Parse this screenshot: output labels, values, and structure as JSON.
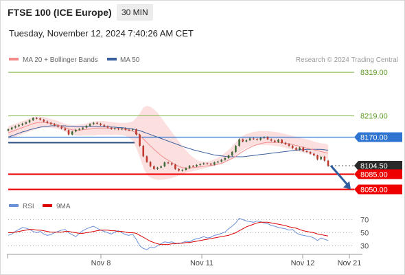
{
  "header": {
    "title": "FTSE 100 (ICE Europe)",
    "interval": "30 MIN",
    "timestamp": "Tuesday, November 12, 2024 7:40:26 AM CET"
  },
  "colors": {
    "ma20": "#f28c8c",
    "ma50": "#3a5f9e",
    "bollinger_fill": "#fbd5d5",
    "candle_up": "#3d6b34",
    "candle_down": "#c0392b",
    "resistance_green": "#7cb342",
    "level_blue": "#2f74d0",
    "support_red": "#ee0000",
    "rsi": "#6a8fd8",
    "rsi_ma": "#dd0000",
    "arrow": "#2e5d9e"
  },
  "chart_data": [
    {
      "type": "line",
      "panel": "price",
      "legend": {
        "ma": "MA 20 + Bollinger Bands",
        "ma50": "MA 50"
      },
      "watermark": "Research © 2024 Trading Central",
      "x_ticks": [
        "Nov 8",
        "Nov 11",
        "Nov 12",
        "Nov 21"
      ],
      "ylim": [
        8035,
        8335
      ],
      "levels": [
        {
          "value": 8319.0,
          "label": "8319.00",
          "style": "resistance"
        },
        {
          "value": 8219.0,
          "label": "8219.00",
          "style": "resistance"
        },
        {
          "value": 8170.0,
          "label": "8170.00",
          "style": "pivot"
        },
        {
          "value": 8104.5,
          "label": "8104.50",
          "style": "last"
        },
        {
          "value": 8085.0,
          "label": "8085.00",
          "style": "support"
        },
        {
          "value": 8050.0,
          "label": "8050.00",
          "style": "support"
        }
      ],
      "candles_close": [
        8188,
        8192,
        8195,
        8198,
        8201,
        8204,
        8209,
        8214,
        8213,
        8210,
        8206,
        8203,
        8200,
        8197,
        8194,
        8190,
        8186,
        8176,
        8183,
        8187,
        8189,
        8192,
        8196,
        8200,
        8203,
        8201,
        8198,
        8195,
        8192,
        8189,
        8190,
        8188,
        8190,
        8187,
        8186,
        8188,
        8176,
        8150,
        8126,
        8113,
        8103,
        8097,
        8100,
        8103,
        8112,
        8110,
        8107,
        8097,
        8093,
        8095,
        8099,
        8104,
        8103,
        8106,
        8108,
        8110,
        8109,
        8107,
        8112,
        8114,
        8118,
        8122,
        8128,
        8136,
        8150,
        8165,
        8160,
        8163,
        8167,
        8166,
        8164,
        8168,
        8170,
        8165,
        8162,
        8159,
        8164,
        8157,
        8154,
        8150,
        8145,
        8141,
        8146,
        8138,
        8136,
        8132,
        8128,
        8119,
        8125,
        8116,
        8104
      ],
      "ma20": [
        8180,
        8183,
        8186,
        8189,
        8192,
        8195,
        8198,
        8201,
        8203,
        8204,
        8204,
        8203,
        8202,
        8200,
        8198,
        8195,
        8192,
        8189,
        8187,
        8186,
        8186,
        8187,
        8188,
        8189,
        8190,
        8191,
        8191,
        8191,
        8191,
        8190,
        8190,
        8189,
        8189,
        8188,
        8186,
        8184,
        8180,
        8174,
        8166,
        8158,
        8150,
        8142,
        8135,
        8128,
        8122,
        8117,
        8112,
        8107,
        8103,
        8100,
        8099,
        8099,
        8100,
        8101,
        8102,
        8103,
        8104,
        8105,
        8106,
        8108,
        8110,
        8113,
        8117,
        8121,
        8126,
        8132,
        8137,
        8142,
        8146,
        8150,
        8153,
        8155,
        8157,
        8158,
        8158,
        8158,
        8158,
        8157,
        8156,
        8155,
        8153,
        8151,
        8149,
        8147,
        8145,
        8143,
        8141,
        8139,
        8137,
        8135,
        8133
      ],
      "bollinger_upper": [
        8195,
        8198,
        8201,
        8204,
        8207,
        8210,
        8213,
        8216,
        8217,
        8217,
        8216,
        8214,
        8212,
        8210,
        8207,
        8204,
        8201,
        8199,
        8198,
        8198,
        8199,
        8200,
        8202,
        8204,
        8206,
        8207,
        8207,
        8207,
        8206,
        8205,
        8204,
        8203,
        8203,
        8203,
        8204,
        8206,
        8214,
        8224,
        8238,
        8242,
        8240,
        8234,
        8226,
        8216,
        8204,
        8193,
        8182,
        8171,
        8160,
        8150,
        8140,
        8131,
        8124,
        8118,
        8115,
        8114,
        8114,
        8116,
        8119,
        8123,
        8128,
        8134,
        8141,
        8149,
        8158,
        8167,
        8173,
        8177,
        8180,
        8182,
        8183,
        8184,
        8184,
        8184,
        8183,
        8182,
        8181,
        8179,
        8177,
        8175,
        8173,
        8171,
        8169,
        8167,
        8165,
        8163,
        8160,
        8158,
        8156,
        8155,
        8153
      ],
      "bollinger_lower": [
        8165,
        8168,
        8171,
        8174,
        8177,
        8180,
        8183,
        8186,
        8189,
        8191,
        8192,
        8192,
        8192,
        8190,
        8189,
        8186,
        8183,
        8179,
        8176,
        8174,
        8173,
        8174,
        8174,
        8174,
        8174,
        8175,
        8175,
        8175,
        8176,
        8175,
        8176,
        8175,
        8175,
        8173,
        8168,
        8162,
        8146,
        8124,
        8100,
        8084,
        8077,
        8074,
        8072,
        8072,
        8073,
        8074,
        8076,
        8079,
        8082,
        8085,
        8088,
        8090,
        8092,
        8094,
        8096,
        8098,
        8100,
        8102,
        8104,
        8106,
        8108,
        8112,
        8117,
        8122,
        8128,
        8135,
        8141,
        8145,
        8148,
        8150,
        8151,
        8152,
        8152,
        8152,
        8151,
        8150,
        8149,
        8147,
        8145,
        8143,
        8141,
        8139,
        8137,
        8135,
        8133,
        8131,
        8128,
        8126,
        8124,
        8122,
        8120
      ],
      "ma50": [
        8170,
        8173,
        8176,
        8179,
        8182,
        8184,
        8187,
        8189,
        8191,
        8193,
        8194,
        8195,
        8196,
        8196,
        8196,
        8196,
        8196,
        8195,
        8195,
        8194,
        8194,
        8194,
        8194,
        8194,
        8194,
        8194,
        8194,
        8194,
        8194,
        8193,
        8193,
        8192,
        8192,
        8191,
        8190,
        8189,
        8187,
        8185,
        8182,
        8179,
        8176,
        8173,
        8170,
        8167,
        8164,
        8161,
        8158,
        8155,
        8152,
        8149,
        8146,
        8144,
        8141,
        8139,
        8137,
        8135,
        8133,
        8131,
        8129,
        8128,
        8127,
        8126,
        8125,
        8125,
        8125,
        8125,
        8125,
        8126,
        8127,
        8128,
        8129,
        8130,
        8131,
        8132,
        8133,
        8134,
        8135,
        8136,
        8137,
        8138,
        8139,
        8140,
        8141,
        8141,
        8142,
        8142,
        8142,
        8142,
        8142,
        8141,
        8140
      ],
      "forecast": {
        "from": 8104.5,
        "to": 8050.0
      }
    },
    {
      "type": "line",
      "panel": "rsi",
      "legend": {
        "rsi": "RSI",
        "ma": "9MA"
      },
      "levels": [
        70,
        50,
        30
      ],
      "ylim": [
        20,
        80
      ],
      "rsi": [
        46,
        48,
        52,
        55,
        58,
        57,
        55,
        52,
        50,
        52,
        48,
        46,
        47,
        50,
        52,
        54,
        55,
        50,
        47,
        44,
        49,
        53,
        56,
        58,
        60,
        57,
        54,
        52,
        50,
        48,
        51,
        53,
        50,
        47,
        46,
        48,
        40,
        30,
        26,
        24,
        28,
        27,
        30,
        33,
        36,
        35,
        36,
        34,
        33,
        35,
        37,
        36,
        39,
        41,
        42,
        44,
        42,
        43,
        46,
        47,
        49,
        51,
        56,
        60,
        65,
        72,
        70,
        68,
        67,
        66,
        68,
        67,
        65,
        64,
        61,
        60,
        58,
        57,
        56,
        54,
        55,
        50,
        47,
        46,
        45,
        44,
        42,
        38,
        42,
        40,
        38
      ],
      "rsi_ma": [
        50,
        50,
        51,
        52,
        53,
        54,
        55,
        55,
        54,
        54,
        53,
        52,
        51,
        51,
        51,
        51,
        52,
        52,
        51,
        50,
        49,
        49,
        50,
        51,
        52,
        53,
        54,
        54,
        54,
        53,
        53,
        52,
        52,
        51,
        50,
        50,
        49,
        46,
        43,
        40,
        37,
        35,
        33,
        32,
        32,
        32,
        33,
        33,
        34,
        34,
        35,
        35,
        36,
        37,
        38,
        39,
        40,
        41,
        42,
        43,
        44,
        45,
        46,
        48,
        50,
        53,
        56,
        59,
        61,
        63,
        65,
        66,
        66,
        66,
        65,
        64,
        63,
        62,
        61,
        59,
        58,
        57,
        55,
        53,
        52,
        51,
        50,
        48,
        47,
        46,
        45
      ]
    }
  ]
}
